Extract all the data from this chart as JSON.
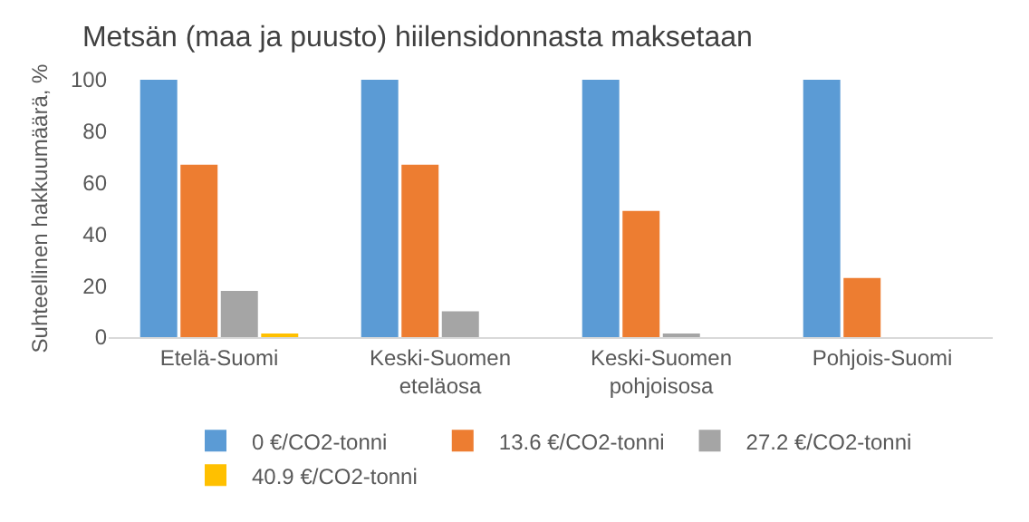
{
  "chart_data": {
    "type": "bar",
    "title": "Metsän (maa ja puusto) hiilensidonnasta maksetaan",
    "ylabel": "Suhteellinen hakkuumäärä, %",
    "categories": [
      "Etelä-Suomi",
      "Keski-Suomen eteläosa",
      "Keski-Suomen pohjoisosa",
      "Pohjois-Suomi"
    ],
    "series": [
      {
        "name": "0 €/CO2-tonni",
        "color": "#5b9bd5",
        "values": [
          100,
          100,
          100,
          100
        ]
      },
      {
        "name": "13.6 €/CO2-tonni",
        "color": "#ed7d31",
        "values": [
          67,
          67,
          49,
          23
        ]
      },
      {
        "name": "27.2 €/CO2-tonni",
        "color": "#a5a5a5",
        "values": [
          18,
          10,
          1,
          0
        ]
      },
      {
        "name": "40.9 €/CO2-tonni",
        "color": "#ffc000",
        "values": [
          1,
          0,
          0,
          0
        ]
      }
    ],
    "ylim": [
      0,
      100
    ],
    "yticks": [
      0,
      20,
      40,
      60,
      80,
      100
    ],
    "grid": false,
    "legend": "bottom"
  }
}
